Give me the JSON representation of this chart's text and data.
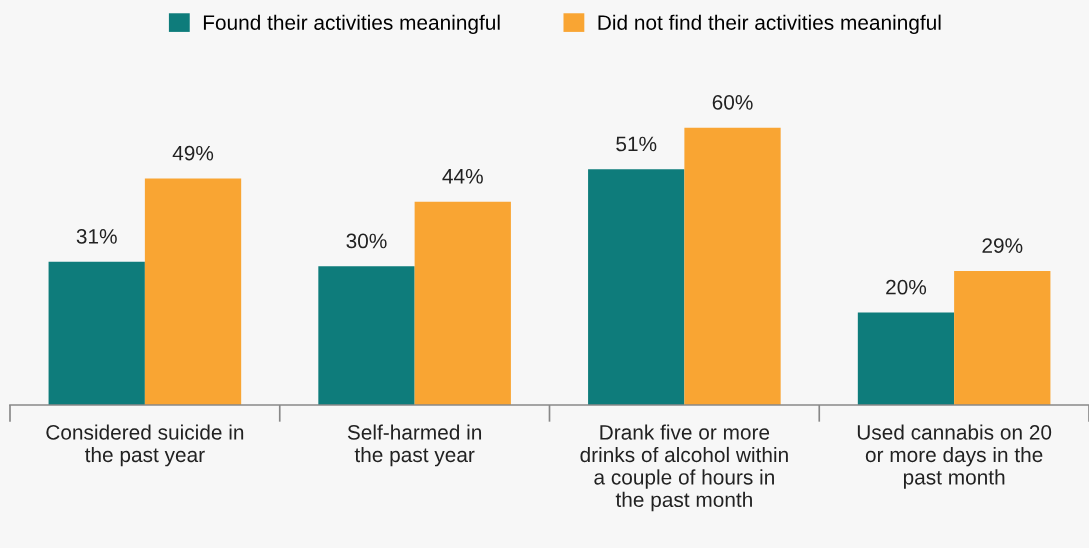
{
  "chart_data": {
    "type": "bar",
    "categories": [
      "Considered suicide in\nthe past year",
      "Self-harmed in\nthe past year",
      "Drank five or more\ndrinks of alcohol within\na couple of hours in\nthe past month",
      "Used cannabis on 20\nor more days in the\npast month"
    ],
    "series": [
      {
        "name": "Found their activities meaningful",
        "color": "#0e7c7b",
        "values": [
          31,
          30,
          51,
          20
        ],
        "value_labels": [
          "31%",
          "30%",
          "51%",
          "20%"
        ]
      },
      {
        "name": "Did not find their activities meaningful",
        "color": "#f9a533",
        "values": [
          49,
          44,
          60,
          29
        ],
        "value_labels": [
          "49%",
          "44%",
          "60%",
          "29%"
        ]
      }
    ],
    "legend": "top",
    "grid": false
  }
}
